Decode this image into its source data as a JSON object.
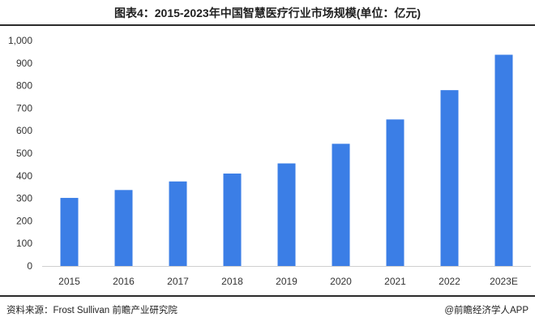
{
  "title": "图表4：2015-2023年中国智慧医疗行业市场规模(单位：亿元)",
  "source": "资料来源：Frost Sullivan 前瞻产业研究院",
  "credit": "@前瞻经济学人APP",
  "colors": {
    "bar": "#3b7ee6"
  },
  "chart_data": {
    "type": "bar",
    "title": "图表4：2015-2023年中国智慧医疗行业市场规模(单位：亿元)",
    "xlabel": "",
    "ylabel": "",
    "categories": [
      "2015",
      "2016",
      "2017",
      "2018",
      "2019",
      "2020",
      "2021",
      "2022",
      "2023E"
    ],
    "values": [
      302,
      337,
      375,
      410,
      455,
      542,
      650,
      780,
      937
    ],
    "ylim": [
      0,
      1000
    ],
    "yticks": [
      "0",
      "100",
      "200",
      "300",
      "400",
      "500",
      "600",
      "700",
      "800",
      "900",
      "1,000"
    ],
    "grid": false,
    "legend": "none"
  }
}
